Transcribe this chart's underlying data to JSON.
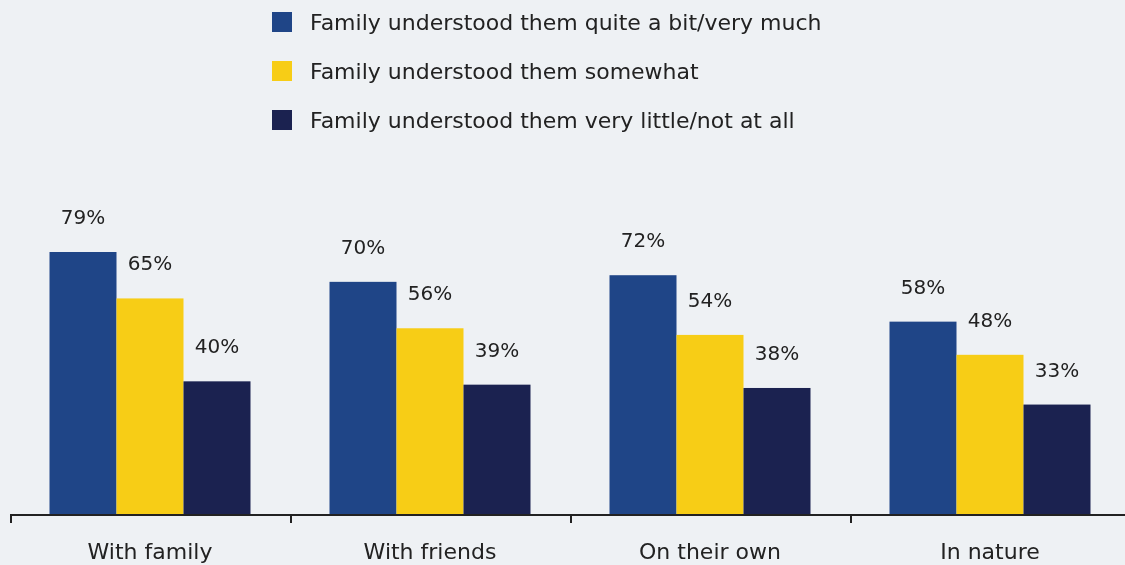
{
  "chart_data": {
    "type": "bar",
    "categories": [
      "With family",
      "With friends",
      "On their own",
      "In nature"
    ],
    "series": [
      {
        "name": "Family understood them quite a bit/very much",
        "color": "#1f4587",
        "values": [
          79,
          70,
          72,
          58
        ],
        "value_labels": [
          "79%",
          "70%",
          "72%",
          "58%"
        ]
      },
      {
        "name": "Family understood them somewhat",
        "color": "#f7cd16",
        "values": [
          65,
          56,
          54,
          48
        ],
        "value_labels": [
          "65%",
          "56%",
          "54%",
          "48%"
        ]
      },
      {
        "name": "Family understood them very little/not at all",
        "color": "#1b2250",
        "values": [
          40,
          39,
          38,
          33
        ],
        "value_labels": [
          "40%",
          "39%",
          "38%",
          "33%"
        ]
      }
    ],
    "legend": "top"
  }
}
